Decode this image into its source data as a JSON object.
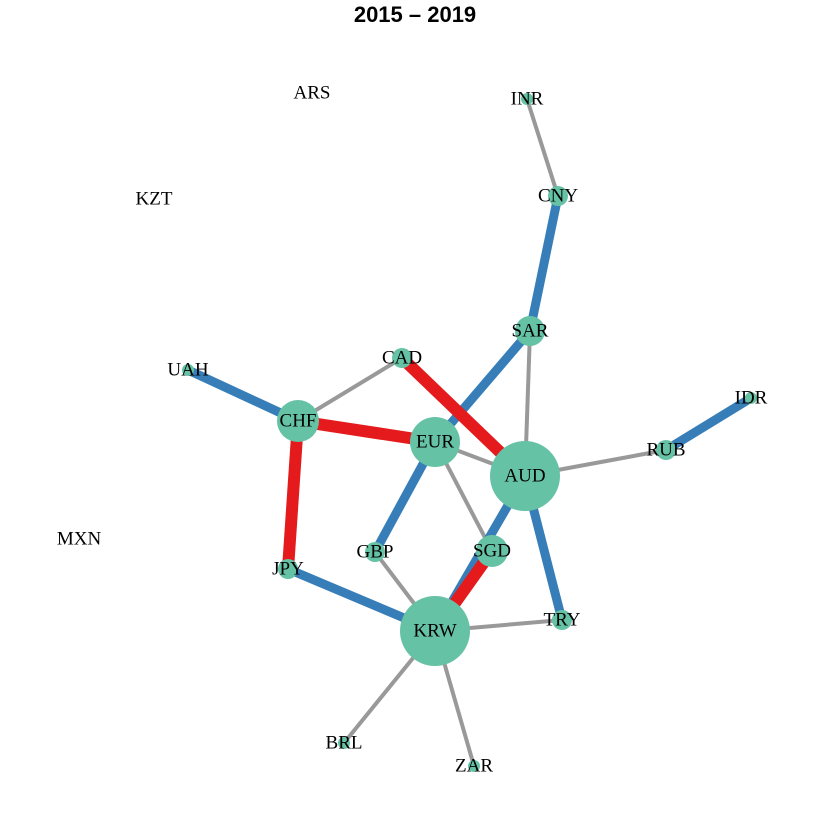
{
  "title": "2015 – 2019",
  "colors": {
    "positive": "#377eb8",
    "negative": "#e41a1c",
    "neutral": "#999999",
    "node": "#66c2a5"
  },
  "nodes": [
    {
      "id": "INR"
    },
    {
      "id": "CNY"
    },
    {
      "id": "SAR"
    },
    {
      "id": "CAD"
    },
    {
      "id": "UAH"
    },
    {
      "id": "CHF"
    },
    {
      "id": "EUR"
    },
    {
      "id": "AUD"
    },
    {
      "id": "IDR"
    },
    {
      "id": "RUB"
    },
    {
      "id": "GBP"
    },
    {
      "id": "SGD"
    },
    {
      "id": "JPY"
    },
    {
      "id": "TRY"
    },
    {
      "id": "KRW"
    },
    {
      "id": "BRL"
    },
    {
      "id": "ZAR"
    },
    {
      "id": "ARS"
    },
    {
      "id": "KZT"
    },
    {
      "id": "MXN"
    }
  ],
  "edges": [
    {
      "from": "INR",
      "to": "CNY",
      "type": "neutral"
    },
    {
      "from": "CNY",
      "to": "SAR",
      "type": "positive"
    },
    {
      "from": "SAR",
      "to": "EUR",
      "type": "positive"
    },
    {
      "from": "SAR",
      "to": "AUD",
      "type": "neutral"
    },
    {
      "from": "CAD",
      "to": "CHF",
      "type": "neutral"
    },
    {
      "from": "CAD",
      "to": "AUD",
      "type": "negative"
    },
    {
      "from": "UAH",
      "to": "CHF",
      "type": "positive"
    },
    {
      "from": "CHF",
      "to": "EUR",
      "type": "negative"
    },
    {
      "from": "CHF",
      "to": "JPY",
      "type": "negative"
    },
    {
      "from": "EUR",
      "to": "AUD",
      "type": "neutral"
    },
    {
      "from": "EUR",
      "to": "GBP",
      "type": "positive"
    },
    {
      "from": "EUR",
      "to": "SGD",
      "type": "neutral"
    },
    {
      "from": "AUD",
      "to": "RUB",
      "type": "neutral"
    },
    {
      "from": "RUB",
      "to": "IDR",
      "type": "positive"
    },
    {
      "from": "AUD",
      "to": "TRY",
      "type": "positive"
    },
    {
      "from": "AUD",
      "to": "KRW",
      "type": "positive"
    },
    {
      "from": "SGD",
      "to": "KRW",
      "type": "negative"
    },
    {
      "from": "GBP",
      "to": "KRW",
      "type": "neutral"
    },
    {
      "from": "JPY",
      "to": "KRW",
      "type": "positive"
    },
    {
      "from": "KRW",
      "to": "TRY",
      "type": "neutral"
    },
    {
      "from": "KRW",
      "to": "BRL",
      "type": "neutral"
    },
    {
      "from": "KRW",
      "to": "ZAR",
      "type": "neutral"
    }
  ]
}
